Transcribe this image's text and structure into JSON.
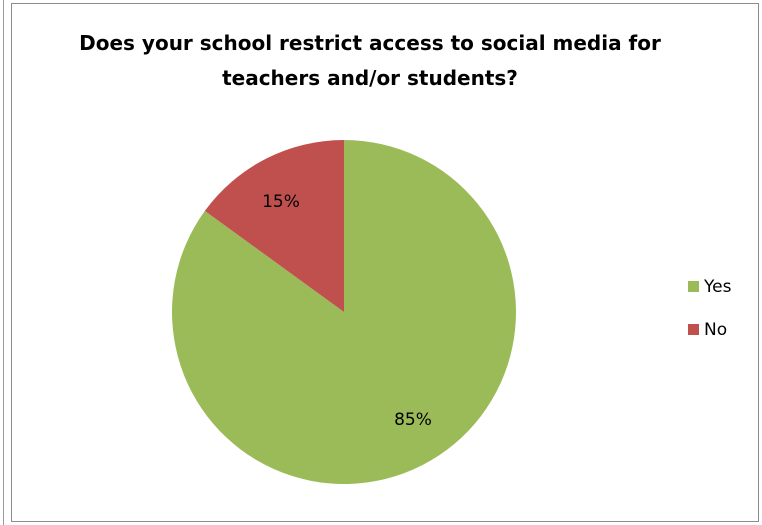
{
  "chart_data": {
    "type": "pie",
    "title": "Does your school restrict access to social media for teachers and/or students?",
    "categories": [
      "Yes",
      "No"
    ],
    "values": [
      85,
      15
    ],
    "data_labels": [
      "85%",
      "15%"
    ],
    "colors": [
      "#9BBB59",
      "#C0504D"
    ],
    "legend": {
      "placement": "right",
      "entries": [
        "Yes",
        "No"
      ]
    },
    "start_angle_deg": 0,
    "direction": "clockwise"
  }
}
